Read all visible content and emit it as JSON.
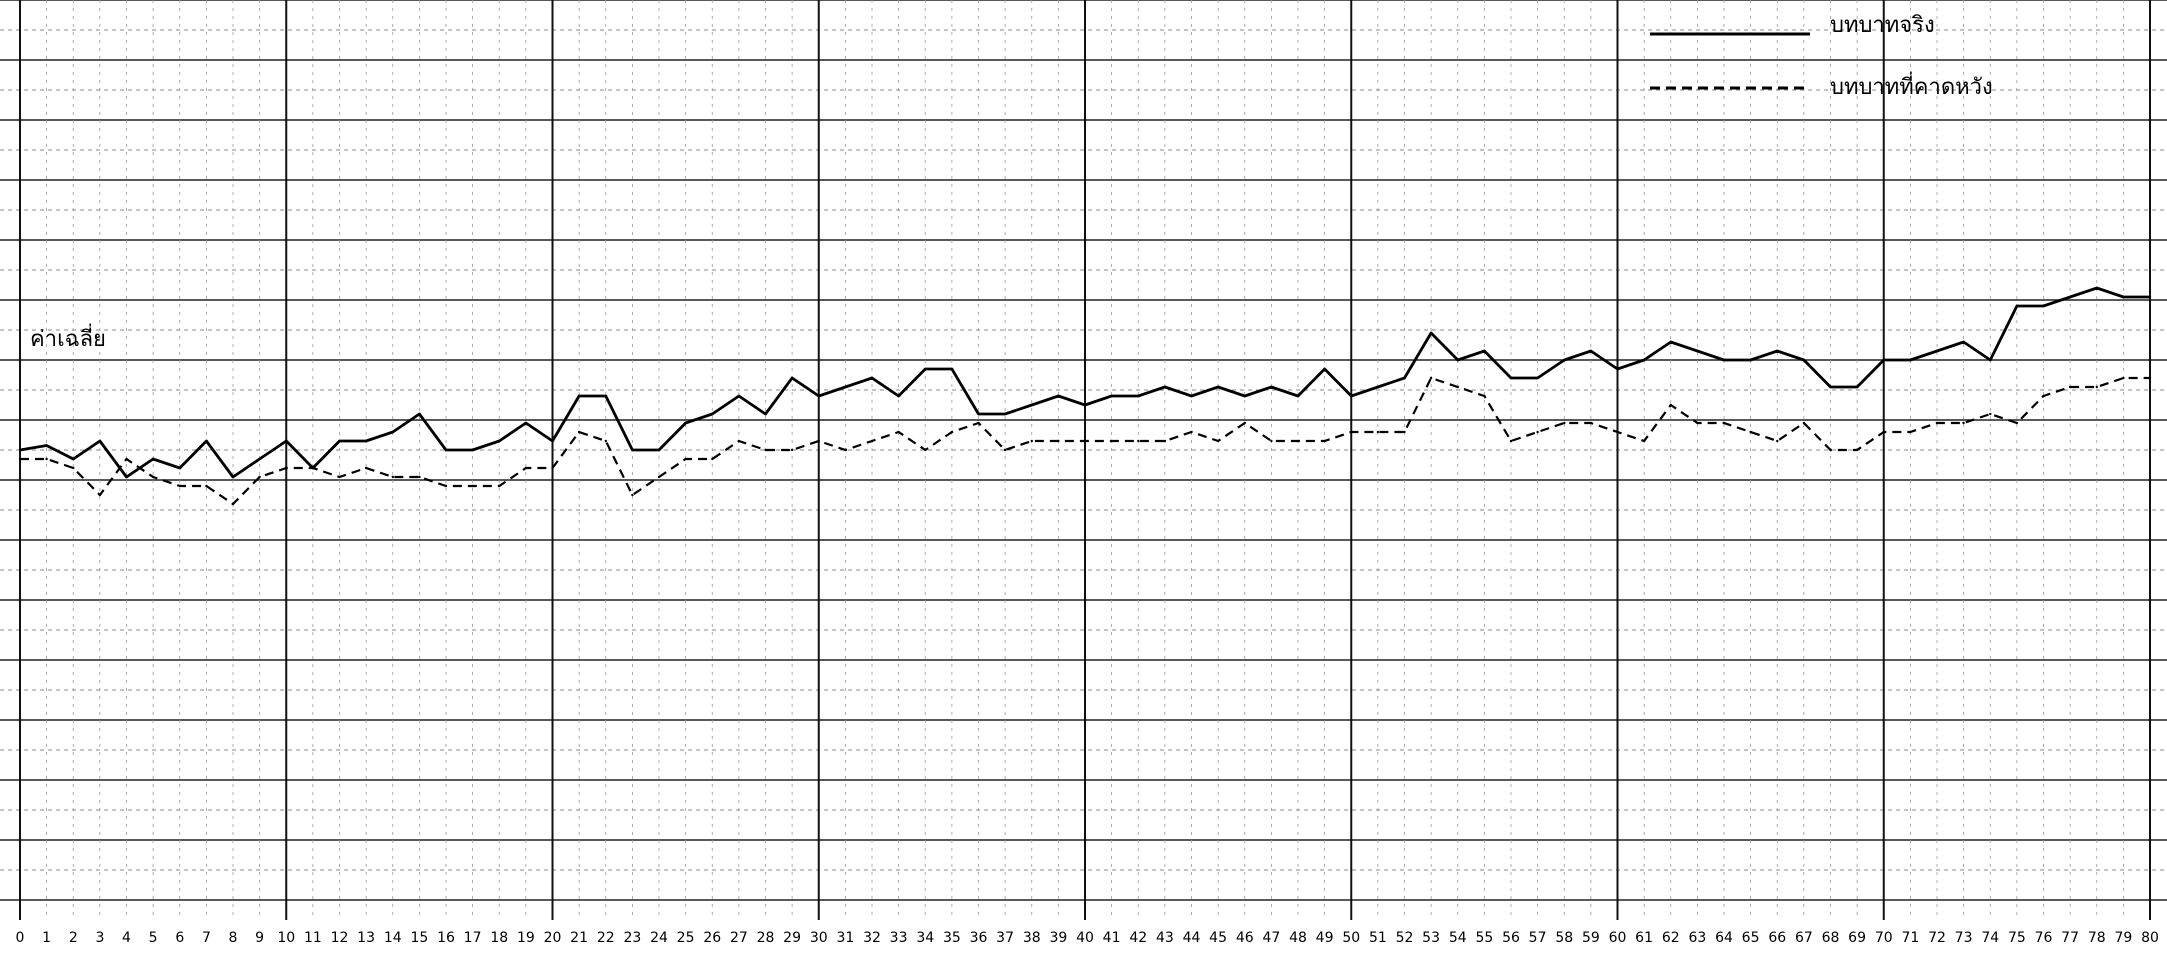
{
  "chart_data": {
    "type": "line",
    "title": "",
    "ylabel": "ค่าเฉลี่ย",
    "xlabel": "",
    "x": [
      0,
      1,
      2,
      3,
      4,
      5,
      6,
      7,
      8,
      9,
      10,
      11,
      12,
      13,
      14,
      15,
      16,
      17,
      18,
      19,
      20,
      21,
      22,
      23,
      24,
      25,
      26,
      27,
      28,
      29,
      30,
      31,
      32,
      33,
      34,
      35,
      36,
      37,
      38,
      39,
      40,
      41,
      42,
      43,
      44,
      45,
      46,
      47,
      48,
      49,
      50,
      51,
      52,
      53,
      54,
      55,
      56,
      57,
      58,
      59,
      60,
      61,
      62,
      63,
      64,
      65,
      66,
      67,
      68,
      69,
      70,
      71,
      72,
      73,
      74,
      75,
      76,
      77,
      78,
      79,
      80
    ],
    "xticklabels": [
      "0",
      "1",
      "2",
      "3",
      "4",
      "5",
      "6",
      "7",
      "8",
      "9",
      "10",
      "11",
      "12",
      "13",
      "14",
      "15",
      "16",
      "17",
      "18",
      "19",
      "20",
      "21",
      "22",
      "23",
      "24",
      "25",
      "26",
      "27",
      "28",
      "29",
      "30",
      "31",
      "32",
      "33",
      "34",
      "35",
      "36",
      "37",
      "38",
      "39",
      "40",
      "41",
      "42",
      "43",
      "44",
      "45",
      "46",
      "47",
      "48",
      "49",
      "50",
      "51",
      "52",
      "53",
      "54",
      "55",
      "56",
      "57",
      "58",
      "59",
      "60",
      "61",
      "62",
      "63",
      "64",
      "65",
      "66",
      "67",
      "68",
      "69",
      "70",
      "71",
      "72",
      "73",
      "74",
      "75",
      "76",
      "77",
      "78",
      "79",
      "80"
    ],
    "ylim": [
      0,
      1
    ],
    "series": [
      {
        "name": "บทบาทจริง",
        "style": "solid",
        "values": [
          0.5,
          0.505,
          0.49,
          0.51,
          0.47,
          0.49,
          0.48,
          0.51,
          0.47,
          0.49,
          0.51,
          0.48,
          0.51,
          0.51,
          0.52,
          0.54,
          0.5,
          0.5,
          0.51,
          0.53,
          0.51,
          0.56,
          0.56,
          0.5,
          0.5,
          0.53,
          0.54,
          0.56,
          0.54,
          0.58,
          0.56,
          0.57,
          0.58,
          0.56,
          0.59,
          0.59,
          0.54,
          0.54,
          0.55,
          0.56,
          0.55,
          0.56,
          0.56,
          0.57,
          0.56,
          0.57,
          0.56,
          0.57,
          0.56,
          0.59,
          0.56,
          0.57,
          0.58,
          0.63,
          0.6,
          0.61,
          0.58,
          0.58,
          0.6,
          0.61,
          0.59,
          0.6,
          0.62,
          0.61,
          0.6,
          0.6,
          0.61,
          0.6,
          0.57,
          0.57,
          0.6,
          0.6,
          0.61,
          0.62,
          0.6,
          0.66,
          0.66,
          0.67,
          0.68,
          0.67,
          0.67
        ]
      },
      {
        "name": "บทบาทที่คาดหวัง",
        "style": "dashed",
        "values": [
          0.49,
          0.49,
          0.48,
          0.45,
          0.49,
          0.47,
          0.46,
          0.46,
          0.44,
          0.47,
          0.48,
          0.48,
          0.47,
          0.48,
          0.47,
          0.47,
          0.46,
          0.46,
          0.46,
          0.48,
          0.48,
          0.52,
          0.51,
          0.45,
          0.47,
          0.49,
          0.49,
          0.51,
          0.5,
          0.5,
          0.51,
          0.5,
          0.51,
          0.52,
          0.5,
          0.52,
          0.53,
          0.5,
          0.51,
          0.51,
          0.51,
          0.51,
          0.51,
          0.51,
          0.52,
          0.51,
          0.53,
          0.51,
          0.51,
          0.51,
          0.52,
          0.52,
          0.52,
          0.58,
          0.57,
          0.56,
          0.51,
          0.52,
          0.53,
          0.53,
          0.52,
          0.51,
          0.55,
          0.53,
          0.53,
          0.52,
          0.51,
          0.53,
          0.5,
          0.5,
          0.52,
          0.52,
          0.53,
          0.53,
          0.54,
          0.53,
          0.56,
          0.57,
          0.57,
          0.58,
          0.58
        ]
      }
    ],
    "legend": "top-right",
    "grid": true
  }
}
